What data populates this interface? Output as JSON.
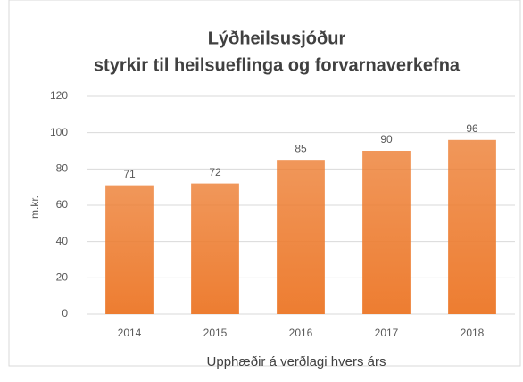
{
  "chart_data": {
    "type": "bar",
    "title": "Lýðheilsusjóður",
    "subtitle": "styrkir til heilsueflinga og forvarnaverkefna",
    "x_label": "Upphæðir á verðlagi hvers árs",
    "y_label": "m.kr.",
    "categories": [
      "2014",
      "2015",
      "2016",
      "2017",
      "2018"
    ],
    "values": [
      71,
      72,
      85,
      90,
      96
    ],
    "color": "#ed7d31",
    "ylim": [
      0,
      120
    ],
    "yticks": [
      0,
      20,
      40,
      60,
      80,
      100,
      120
    ],
    "grid": true
  }
}
